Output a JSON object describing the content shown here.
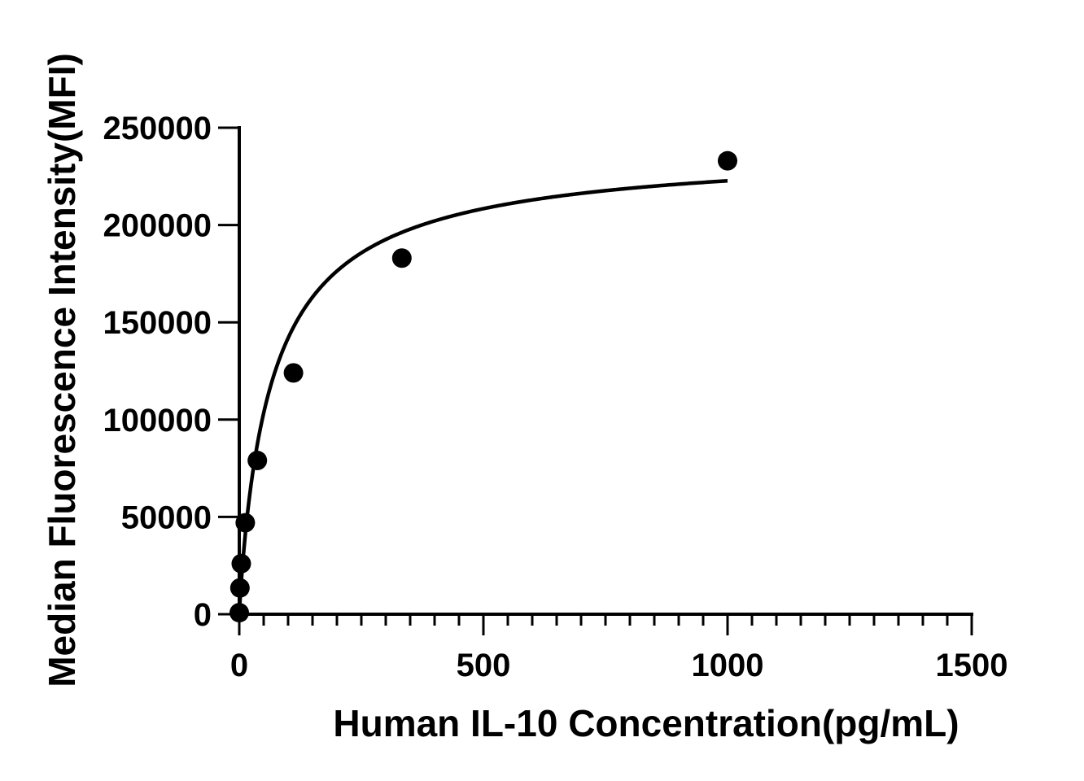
{
  "chart_data": {
    "type": "scatter",
    "title": "",
    "xlabel": "Human IL-10 Concentration(pg/mL)",
    "ylabel": "Median Fluorescence Intensity(MFI)",
    "xlim": [
      0,
      1500
    ],
    "ylim": [
      0,
      250000
    ],
    "x_ticks": [
      "0",
      "500",
      "1000",
      "1500"
    ],
    "y_ticks": [
      "0",
      "50000",
      "100000",
      "150000",
      "200000",
      "250000"
    ],
    "x_minor_ticks_per_major": 10,
    "grid": false,
    "points": {
      "x": [
        0,
        1.37,
        4.12,
        12.3,
        37,
        111,
        333,
        1000
      ],
      "y": [
        800,
        13500,
        26000,
        47000,
        79000,
        124000,
        183000,
        233000
      ]
    },
    "fit_curve": {
      "model": "four-parameter logistic",
      "bottom": 0,
      "top": 241000,
      "ec50": 68,
      "hill": 0.93,
      "x_range": [
        0,
        1000
      ]
    },
    "colors": {
      "points": "#000000",
      "fit": "#000000",
      "axes": "#000000"
    }
  }
}
